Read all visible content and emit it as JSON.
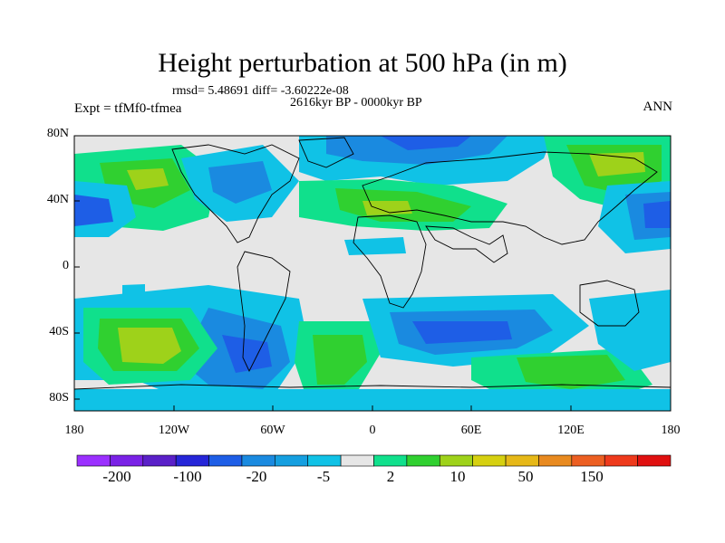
{
  "title": "Height perturbation at 500 hPa (in m)",
  "stats": "rmsd= 5.48691 diff= -3.60222e-08",
  "period": "2616kyr BP - 0000kyr BP",
  "experiment": "Expt = tfMf0-tfmea",
  "season": "ANN",
  "lat_ticks": [
    "80N",
    "40N",
    "0",
    "40S",
    "80S"
  ],
  "lon_ticks": [
    "180",
    "120W",
    "60W",
    "0",
    "60E",
    "120E",
    "180"
  ],
  "colorbar": {
    "labels": [
      "-200",
      "-100",
      "-20",
      "-5",
      "2",
      "10",
      "50",
      "150"
    ],
    "colors": [
      "#9b30ff",
      "#7a22e6",
      "#5a20c8",
      "#2626d8",
      "#1e5ee6",
      "#1a8ae0",
      "#159fe0",
      "#10c2e6",
      "#e6e6e6",
      "#10e08c",
      "#30d030",
      "#9ed21a",
      "#d6d010",
      "#e6b818",
      "#e88a20",
      "#ec5f22",
      "#ee3a1c",
      "#e01010"
    ]
  },
  "colors": {
    "background": "#e6e6e6",
    "land_outline": "#000000"
  }
}
